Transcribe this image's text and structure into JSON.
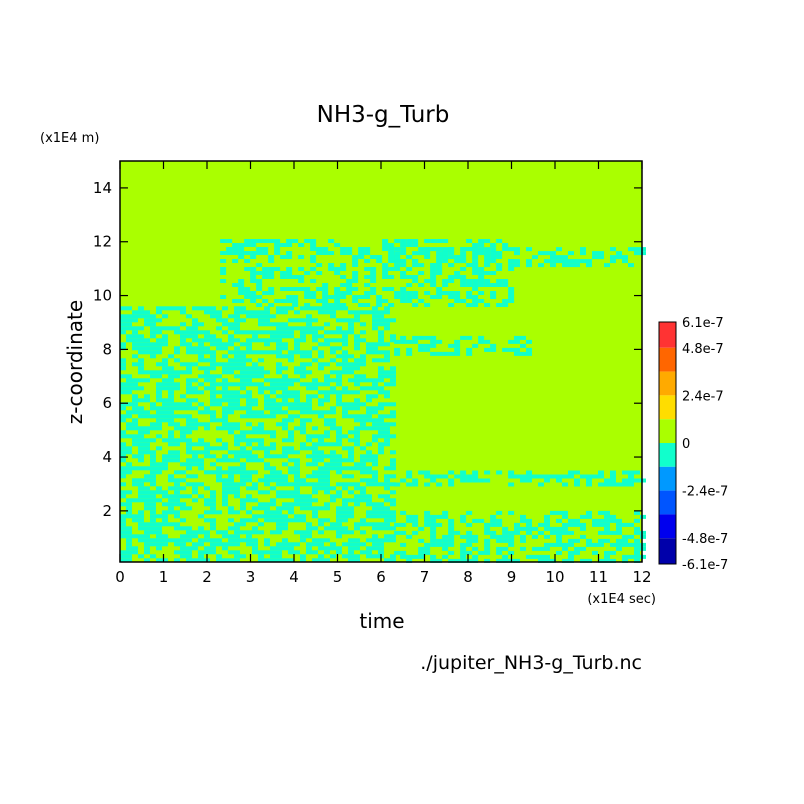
{
  "chart_data": {
    "type": "heatmap",
    "title": "NH3-g_Turb",
    "xlabel": "time",
    "ylabel": "z-coordinate",
    "x_unit_label": "(x1E4 sec)",
    "y_unit_label": "(x1E4 m)",
    "xlim": [
      0,
      12
    ],
    "ylim": [
      0.1,
      15
    ],
    "x_ticks": [
      "0",
      "1",
      "2",
      "3",
      "4",
      "5",
      "6",
      "7",
      "8",
      "9",
      "10",
      "11",
      "12"
    ],
    "y_ticks": [
      "2",
      "4",
      "6",
      "8",
      "10",
      "12",
      "14"
    ],
    "x_tick_values": [
      0,
      1,
      2,
      3,
      4,
      5,
      6,
      7,
      8,
      9,
      10,
      11,
      12
    ],
    "y_tick_values": [
      2,
      4,
      6,
      8,
      10,
      12,
      14
    ],
    "colorbar": {
      "labels": [
        "6.1e-7",
        "4.8e-7",
        "2.4e-7",
        "0",
        "-2.4e-7",
        "-4.8e-7",
        "-6.1e-7"
      ],
      "label_values": [
        6.1e-07,
        4.8e-07,
        2.4e-07,
        0,
        -2.4e-07,
        -4.8e-07,
        -6.1e-07
      ],
      "levels": [
        {
          "min": 4.8e-07,
          "max": 6.1e-07,
          "color": "#ff3333"
        },
        {
          "min": 3.6e-07,
          "max": 4.8e-07,
          "color": "#ff6600"
        },
        {
          "min": 2.4e-07,
          "max": 3.6e-07,
          "color": "#ffaa00"
        },
        {
          "min": 1.2e-07,
          "max": 2.4e-07,
          "color": "#ffdd00"
        },
        {
          "min": 0,
          "max": 1.2e-07,
          "color": "#aaff00"
        },
        {
          "min": -1.2e-07,
          "max": 0,
          "color": "#11ffcc"
        },
        {
          "min": -2.4e-07,
          "max": -1.2e-07,
          "color": "#0099ff"
        },
        {
          "min": -3.6e-07,
          "max": -2.4e-07,
          "color": "#0055ff"
        },
        {
          "min": -4.8e-07,
          "max": -3.6e-07,
          "color": "#0000ee"
        },
        {
          "min": -6.1e-07,
          "max": -4.8e-07,
          "color": "#0000aa"
        }
      ]
    },
    "background_value_color": "#aaff00",
    "negative_value_color": "#11ffcc",
    "regions_negative": [
      {
        "x": [
          0.0,
          6.3
        ],
        "y": [
          0.1,
          9.6
        ]
      },
      {
        "x": [
          2.3,
          9.0
        ],
        "y": [
          9.6,
          12.1
        ]
      },
      {
        "x": [
          6.3,
          12.0
        ],
        "y": [
          11.2,
          11.8
        ]
      },
      {
        "x": [
          6.3,
          9.4
        ],
        "y": [
          7.8,
          8.5
        ]
      },
      {
        "x": [
          6.3,
          12.0
        ],
        "y": [
          3.0,
          3.5
        ]
      },
      {
        "x": [
          6.3,
          12.0
        ],
        "y": [
          0.1,
          2.0
        ]
      }
    ],
    "footer": "./jupiter_NH3-g_Turb.nc"
  }
}
